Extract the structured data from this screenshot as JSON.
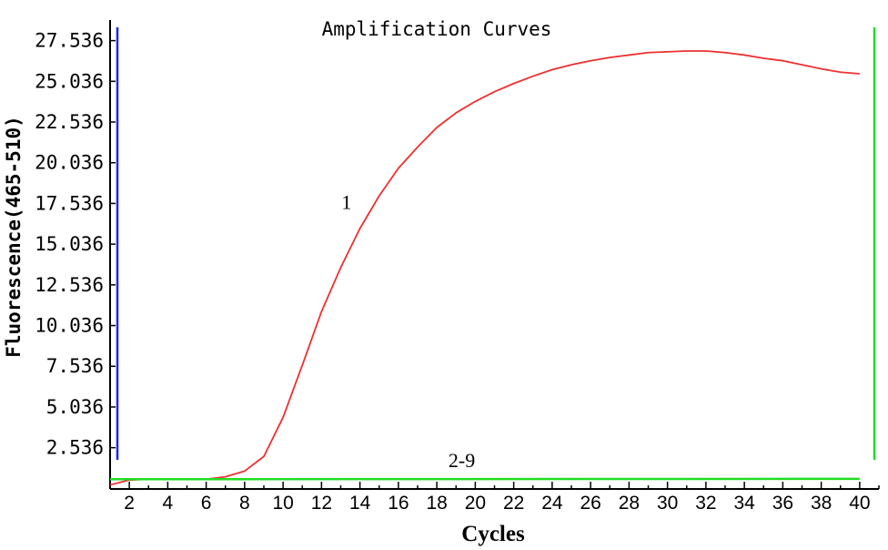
{
  "chart_data": {
    "type": "line",
    "title": "Amplification Curves",
    "xlabel": "Cycles",
    "ylabel": "Fluorescence(465-510)",
    "xlim": [
      1,
      41
    ],
    "ylim": [
      0,
      28.8
    ],
    "x_ticks": [
      2,
      4,
      6,
      8,
      10,
      12,
      14,
      16,
      18,
      20,
      22,
      24,
      26,
      28,
      30,
      32,
      34,
      36,
      38,
      40
    ],
    "x_tick_labels": [
      "2",
      "4",
      "6",
      "8",
      "10",
      "12",
      "14",
      "16",
      "18",
      "20",
      "22",
      "24",
      "26",
      "28",
      "30",
      "32",
      "34",
      "36",
      "38",
      "40"
    ],
    "y_ticks": [
      2.536,
      5.036,
      7.536,
      10.036,
      12.536,
      15.036,
      17.536,
      20.036,
      22.536,
      25.036,
      27.536
    ],
    "y_tick_labels": [
      "2.536",
      "5.036",
      "7.536",
      "10.036",
      "12.536",
      "15.036",
      "17.536",
      "20.036",
      "22.536",
      "25.036",
      "27.536"
    ],
    "grid": false,
    "series": [
      {
        "name": "1",
        "color": "#ee3030",
        "x": [
          1,
          2,
          3,
          4,
          5,
          6,
          7,
          8,
          9,
          10,
          11,
          12,
          13,
          14,
          15,
          16,
          17,
          18,
          19,
          20,
          21,
          22,
          23,
          24,
          25,
          26,
          27,
          28,
          29,
          30,
          31,
          32,
          33,
          34,
          35,
          36,
          37,
          38,
          39,
          40
        ],
        "y": [
          0.25,
          0.55,
          0.6,
          0.6,
          0.6,
          0.6,
          0.75,
          1.1,
          2.0,
          4.4,
          7.6,
          10.9,
          13.6,
          16.0,
          18.0,
          19.7,
          21.0,
          22.2,
          23.1,
          23.8,
          24.4,
          24.9,
          25.35,
          25.75,
          26.05,
          26.3,
          26.5,
          26.65,
          26.8,
          26.85,
          26.9,
          26.9,
          26.8,
          26.65,
          26.45,
          26.3,
          26.05,
          25.8,
          25.6,
          25.5
        ]
      },
      {
        "name": "2-9",
        "color": "#22dd22",
        "x": [
          1,
          40
        ],
        "y": [
          0.6,
          0.62
        ]
      }
    ],
    "annotations": [
      {
        "text": "1",
        "x": 13.3,
        "y": 17.2
      },
      {
        "text": "2-9",
        "x": 19.3,
        "y": 1.35
      }
    ],
    "markers": [
      {
        "x": 1,
        "color": "#2222ff"
      },
      {
        "x": 41,
        "color": "#22dd22"
      }
    ]
  }
}
